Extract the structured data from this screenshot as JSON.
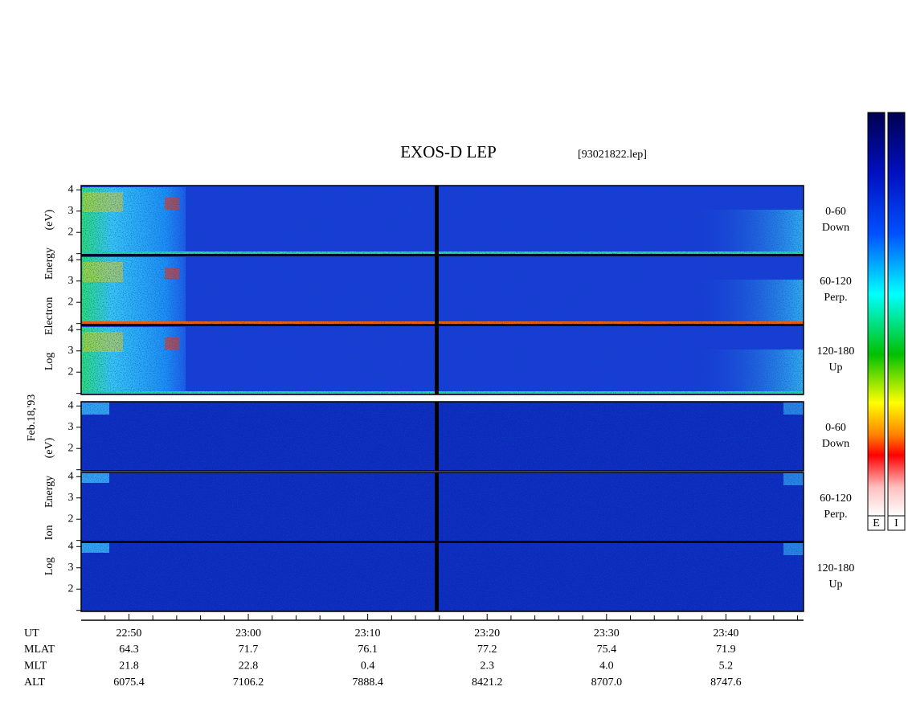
{
  "chart_data": {
    "type": "spectrogram",
    "title": "EXOS-D LEP",
    "subtitle": "[93021822.lep]",
    "date_label": "Feb.18,'93",
    "groups": [
      {
        "label": "Log Electron Energy (eV)",
        "kind": "electron",
        "panels": [
          {
            "label_lines": [
              "0-60",
              "Down"
            ]
          },
          {
            "label_lines": [
              "60-120",
              "Perp."
            ]
          },
          {
            "label_lines": [
              "120-180",
              "Up"
            ]
          }
        ]
      },
      {
        "label": "Log Ion Energy (eV)",
        "kind": "ion",
        "panels": [
          {
            "label_lines": [
              "0-60",
              "Down"
            ]
          },
          {
            "label_lines": [
              "60-120",
              "Perp."
            ]
          },
          {
            "label_lines": [
              "120-180",
              "Up"
            ]
          }
        ]
      }
    ],
    "ylim": [
      0.95,
      4.2
    ],
    "yticks": [
      2,
      3,
      4
    ],
    "minor_yticks": [
      1
    ],
    "xlim": [
      "22:46:00",
      "23:46:30"
    ],
    "xticks": [
      "22:50",
      "23:00",
      "23:10",
      "23:20",
      "23:30",
      "23:40"
    ],
    "minor_xticks": [
      "22:48",
      "22:52",
      "22:54",
      "22:56",
      "22:58",
      "23:02",
      "23:04",
      "23:06",
      "23:08",
      "23:12",
      "23:14",
      "23:16",
      "23:18",
      "23:22",
      "23:24",
      "23:26",
      "23:28",
      "23:32",
      "23:34",
      "23:36",
      "23:38",
      "23:42",
      "23:44",
      "23:46"
    ],
    "x_label": "UT",
    "ephemeris": [
      {
        "name": "MLAT",
        "values": [
          "64.3",
          "71.7",
          "76.1",
          "77.2",
          "75.4",
          "71.9"
        ]
      },
      {
        "name": "MLT",
        "values": [
          "21.8",
          "22.8",
          "0.4",
          "2.3",
          "4.0",
          "5.2"
        ]
      },
      {
        "name": "ALT",
        "values": [
          "6075.4",
          "7106.2",
          "7888.4",
          "8421.2",
          "8707.0",
          "8747.6"
        ]
      }
    ],
    "colorbars": [
      {
        "label": "E"
      },
      {
        "label": "I"
      }
    ]
  }
}
